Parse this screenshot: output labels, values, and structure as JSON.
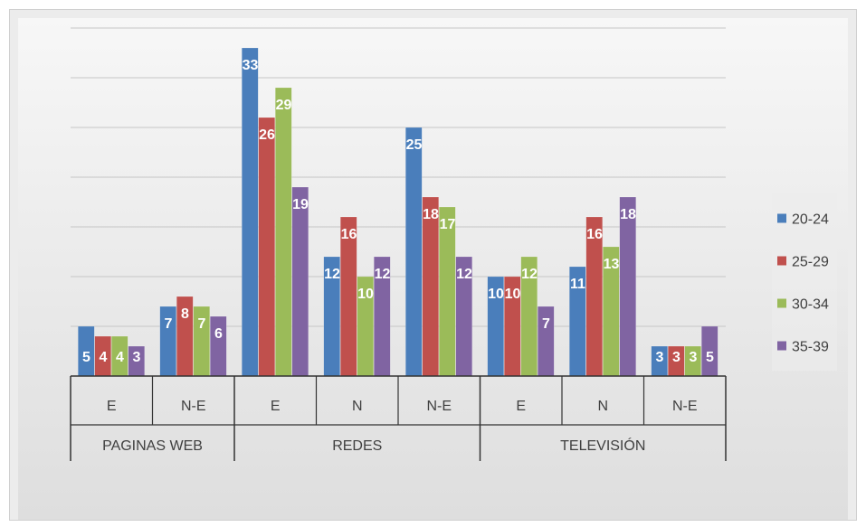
{
  "chart_data": {
    "type": "bar",
    "title": "",
    "xlabel": "",
    "ylabel": "",
    "ylim": [
      0,
      35
    ],
    "grid": true,
    "legend_position": "right",
    "groups": [
      {
        "label": "PAGINAS WEB",
        "categories": [
          "E",
          "N-E"
        ]
      },
      {
        "label": "REDES",
        "categories": [
          "E",
          "N",
          "N-E"
        ]
      },
      {
        "label": "TELEVISIÓN",
        "categories": [
          "E",
          "N",
          "N-E"
        ]
      }
    ],
    "categories": [
      "E",
      "N-E",
      "E",
      "N",
      "N-E",
      "E",
      "N",
      "N-E"
    ],
    "series": [
      {
        "name": "20-24",
        "color": "#4a7ebb",
        "values": [
          5,
          7,
          33,
          12,
          25,
          10,
          11,
          3
        ]
      },
      {
        "name": "25-29",
        "color": "#c0504d",
        "values": [
          4,
          8,
          26,
          16,
          18,
          10,
          16,
          3
        ]
      },
      {
        "name": "30-34",
        "color": "#9bbb59",
        "values": [
          4,
          7,
          29,
          10,
          17,
          12,
          13,
          3
        ]
      },
      {
        "name": "35-39",
        "color": "#8064a2",
        "values": [
          3,
          6,
          19,
          12,
          12,
          7,
          18,
          5
        ]
      }
    ]
  }
}
